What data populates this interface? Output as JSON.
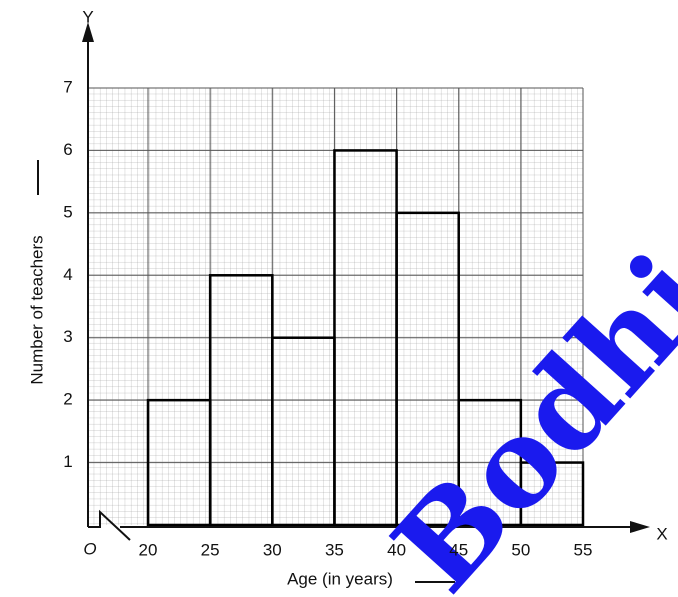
{
  "chart_data": {
    "type": "histogram",
    "xlabel": "Age (in years)",
    "ylabel": "Number of teachers",
    "x_axis_name": "X",
    "y_axis_name": "Y",
    "origin_label": "O",
    "watermark": "Bodhi",
    "bins": [
      20,
      25,
      30,
      35,
      40,
      45,
      50,
      55
    ],
    "values": [
      2,
      4,
      3,
      6,
      5,
      2,
      1
    ],
    "xlim": [
      20,
      55
    ],
    "ylim": [
      0,
      7
    ],
    "xticks": [
      20,
      25,
      30,
      35,
      40,
      45,
      50,
      55
    ],
    "yticks": [
      1,
      2,
      3,
      4,
      5,
      6,
      7
    ],
    "grid": true
  }
}
